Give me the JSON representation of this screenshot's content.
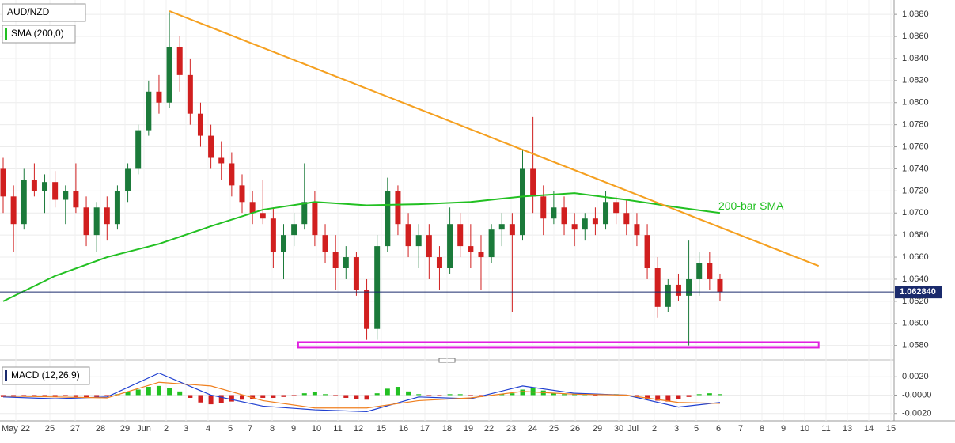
{
  "chart_data": [
    {
      "type": "candlestick",
      "title": "AUD/NZD",
      "indicator_label": "SMA (200,0)",
      "x_labels": [
        "May 22",
        "25",
        "27",
        "28",
        "29",
        "Jun",
        "2",
        "3",
        "4",
        "5",
        "7",
        "8",
        "9",
        "10",
        "11",
        "12",
        "15",
        "16",
        "17",
        "18",
        "19",
        "22",
        "23",
        "24",
        "25",
        "26",
        "29",
        "30",
        "Jul",
        "2",
        "3",
        "5",
        "6",
        "7",
        "8",
        "9",
        "10",
        "11",
        "13",
        "14",
        "15"
      ],
      "ylim": [
        1.0569,
        1.0893
      ],
      "yticks": [
        {
          "value": 1.058,
          "label": "1.0580"
        },
        {
          "value": 1.06,
          "label": "1.0600"
        },
        {
          "value": 1.062,
          "label": "1.0620"
        },
        {
          "value": 1.064,
          "label": "1.0640"
        },
        {
          "value": 1.066,
          "label": "1.0660"
        },
        {
          "value": 1.068,
          "label": "1.0680"
        },
        {
          "value": 1.07,
          "label": "1.0700"
        },
        {
          "value": 1.072,
          "label": "1.0720"
        },
        {
          "value": 1.074,
          "label": "1.0740"
        },
        {
          "value": 1.076,
          "label": "1.0760"
        },
        {
          "value": 1.078,
          "label": "1.0780"
        },
        {
          "value": 1.08,
          "label": "1.0800"
        },
        {
          "value": 1.082,
          "label": "1.0820"
        },
        {
          "value": 1.084,
          "label": "1.0840"
        },
        {
          "value": 1.086,
          "label": "1.0860"
        },
        {
          "value": 1.088,
          "label": "1.0880"
        }
      ],
      "grid": true,
      "up_color": "#1b7a3a",
      "down_color": "#d11f1f",
      "ohlc": [
        [
          1.074,
          1.075,
          1.07,
          1.0715
        ],
        [
          1.0715,
          1.0725,
          1.0665,
          1.069
        ],
        [
          1.069,
          1.074,
          1.0685,
          1.073
        ],
        [
          1.073,
          1.0745,
          1.0715,
          1.072
        ],
        [
          1.072,
          1.0735,
          1.07,
          1.0728
        ],
        [
          1.0728,
          1.0738,
          1.0705,
          1.0712
        ],
        [
          1.0712,
          1.0725,
          1.069,
          1.072
        ],
        [
          1.072,
          1.0745,
          1.07,
          1.0705
        ],
        [
          1.0705,
          1.0715,
          1.067,
          1.068
        ],
        [
          1.068,
          1.071,
          1.0665,
          1.0705
        ],
        [
          1.0705,
          1.0715,
          1.0675,
          1.069
        ],
        [
          1.069,
          1.0725,
          1.0685,
          1.072
        ],
        [
          1.072,
          1.0745,
          1.071,
          1.074
        ],
        [
          1.074,
          1.078,
          1.0735,
          1.0775
        ],
        [
          1.0775,
          1.082,
          1.077,
          1.081
        ],
        [
          1.081,
          1.0825,
          1.079,
          1.08
        ],
        [
          1.08,
          1.0882,
          1.0795,
          1.085
        ],
        [
          1.085,
          1.086,
          1.081,
          1.0825
        ],
        [
          1.0825,
          1.084,
          1.078,
          1.079
        ],
        [
          1.079,
          1.08,
          1.076,
          1.077
        ],
        [
          1.077,
          1.078,
          1.074,
          1.075
        ],
        [
          1.075,
          1.0765,
          1.073,
          1.0745
        ],
        [
          1.0745,
          1.0755,
          1.0715,
          1.0725
        ],
        [
          1.0725,
          1.0735,
          1.07,
          1.071
        ],
        [
          1.071,
          1.072,
          1.069,
          1.07
        ],
        [
          1.07,
          1.073,
          1.069,
          1.0695
        ],
        [
          1.0695,
          1.0705,
          1.065,
          1.0665
        ],
        [
          1.0665,
          1.069,
          1.064,
          1.068
        ],
        [
          1.068,
          1.07,
          1.067,
          1.069
        ],
        [
          1.069,
          1.0745,
          1.0685,
          1.071
        ],
        [
          1.071,
          1.072,
          1.067,
          1.068
        ],
        [
          1.068,
          1.069,
          1.0655,
          1.0665
        ],
        [
          1.0665,
          1.068,
          1.063,
          1.065
        ],
        [
          1.065,
          1.067,
          1.064,
          1.066
        ],
        [
          1.066,
          1.0665,
          1.0625,
          1.063
        ],
        [
          1.063,
          1.064,
          1.0585,
          1.0595
        ],
        [
          1.0595,
          1.068,
          1.0585,
          1.067
        ],
        [
          1.067,
          1.0732,
          1.0665,
          1.072
        ],
        [
          1.072,
          1.0725,
          1.068,
          1.069
        ],
        [
          1.069,
          1.07,
          1.066,
          1.067
        ],
        [
          1.067,
          1.069,
          1.065,
          1.068
        ],
        [
          1.068,
          1.069,
          1.064,
          1.066
        ],
        [
          1.066,
          1.067,
          1.063,
          1.065
        ],
        [
          1.065,
          1.0705,
          1.0645,
          1.069
        ],
        [
          1.069,
          1.07,
          1.066,
          1.067
        ],
        [
          1.067,
          1.069,
          1.065,
          1.0665
        ],
        [
          1.0665,
          1.068,
          1.063,
          1.066
        ],
        [
          1.066,
          1.069,
          1.0655,
          1.0685
        ],
        [
          1.0685,
          1.07,
          1.067,
          1.069
        ],
        [
          1.069,
          1.07,
          1.061,
          1.068
        ],
        [
          1.068,
          1.0758,
          1.0675,
          1.074
        ],
        [
          1.074,
          1.0787,
          1.07,
          1.0715
        ],
        [
          1.0715,
          1.0725,
          1.068,
          1.0695
        ],
        [
          1.0695,
          1.072,
          1.069,
          1.0705
        ],
        [
          1.0705,
          1.0715,
          1.068,
          1.069
        ],
        [
          1.069,
          1.07,
          1.067,
          1.0685
        ],
        [
          1.0685,
          1.07,
          1.0675,
          1.0695
        ],
        [
          1.0695,
          1.0705,
          1.068,
          1.069
        ],
        [
          1.069,
          1.072,
          1.0685,
          1.071
        ],
        [
          1.071,
          1.0715,
          1.069,
          1.07
        ],
        [
          1.07,
          1.0712,
          1.068,
          1.069
        ],
        [
          1.069,
          1.07,
          1.067,
          1.068
        ],
        [
          1.068,
          1.069,
          1.064,
          1.065
        ],
        [
          1.065,
          1.066,
          1.0605,
          1.0615
        ],
        [
          1.0615,
          1.064,
          1.061,
          1.0635
        ],
        [
          1.0635,
          1.0645,
          1.062,
          1.0625
        ],
        [
          1.0625,
          1.0675,
          1.058,
          1.064
        ],
        [
          1.064,
          1.0665,
          1.0625,
          1.0655
        ],
        [
          1.0655,
          1.0665,
          1.063,
          1.064
        ],
        [
          1.064,
          1.0645,
          1.062,
          1.06284
        ]
      ],
      "sma": {
        "name": "200-bar SMA",
        "color": "#22c022",
        "x": [
          0,
          5,
          10,
          15,
          20,
          25,
          30,
          35,
          40,
          45,
          50,
          55,
          60,
          65,
          69
        ],
        "values": [
          1.062,
          1.0643,
          1.066,
          1.0672,
          1.0688,
          1.0703,
          1.071,
          1.0707,
          1.0708,
          1.071,
          1.0715,
          1.0718,
          1.0712,
          1.0705,
          1.07
        ]
      },
      "trendline": {
        "color": "#f5a020",
        "x": [
          16,
          78.5
        ],
        "values": [
          1.0883,
          1.0652
        ]
      },
      "support_zone": {
        "color": "#e020e0",
        "x": [
          28.4,
          78.5
        ],
        "values": [
          1.0583,
          1.0578
        ]
      },
      "last_price": {
        "value": 1.06284,
        "label": "1.062840",
        "color": "#1a2a6c"
      }
    },
    {
      "type": "macd",
      "title": "MACD (12,26,9)",
      "ylim": [
        -0.0028,
        0.0034
      ],
      "yticks": [
        {
          "value": -0.002,
          "label": "-0.0020"
        },
        {
          "value": 0,
          "label": "-0.0000"
        },
        {
          "value": 0.002,
          "label": "0.0020"
        }
      ],
      "histogram": {
        "pos_color": "#22c022",
        "neg_color": "#d11f1f",
        "values": [
          -0.0002,
          -0.0002,
          -0.0001,
          -0.0001,
          -0.0002,
          -0.0002,
          -0.0001,
          -0.0002,
          -0.0003,
          -0.0002,
          -0.0001,
          0.0001,
          0.0003,
          0.0006,
          0.0009,
          0.001,
          0.0008,
          0.0004,
          -0.0003,
          -0.0008,
          -0.001,
          -0.0009,
          -0.0007,
          -0.0005,
          -0.0004,
          -0.0003,
          -0.0003,
          -0.0002,
          -0.0001,
          0.0002,
          0.0003,
          0.0001,
          -0.0001,
          -0.0003,
          -0.0004,
          -0.0005,
          0.0002,
          0.0007,
          0.0009,
          0.0004,
          0.0001,
          -0.0001,
          -0.0001,
          0.0001,
          0.0001,
          -0.0001,
          -0.0002,
          -0.0001,
          0.0001,
          0.0002,
          0.0006,
          0.0008,
          0.0005,
          0.0002,
          0.0001,
          0.0001,
          0.0001,
          -0.0001,
          0.0001,
          0.0001,
          -0.0001,
          -0.0002,
          -0.0004,
          -0.0006,
          -0.0007,
          -0.0004,
          -0.0002,
          0.0001,
          0.0002,
          0.0001
        ]
      },
      "series": [
        {
          "color": "#1f3fd0",
          "x": [
            0,
            5,
            10,
            15,
            20,
            25,
            30,
            35,
            40,
            45,
            50,
            55,
            60,
            65,
            69
          ],
          "values": [
            -0.0002,
            -0.0004,
            -0.0002,
            0.0024,
            0.0,
            -0.0012,
            -0.0016,
            -0.0018,
            -0.0002,
            -0.0004,
            0.001,
            0.0002,
            0.0,
            -0.0013,
            -0.0008
          ]
        },
        {
          "color": "#f08020",
          "x": [
            0,
            5,
            10,
            15,
            20,
            25,
            30,
            35,
            40,
            45,
            50,
            55,
            60,
            65,
            69
          ],
          "values": [
            -0.0001,
            -0.0002,
            -0.0003,
            0.0014,
            0.001,
            -0.0006,
            -0.0014,
            -0.0014,
            -0.0006,
            -0.0003,
            0.0004,
            0.0001,
            0.0,
            -0.0008,
            -0.0009
          ]
        }
      ]
    }
  ]
}
